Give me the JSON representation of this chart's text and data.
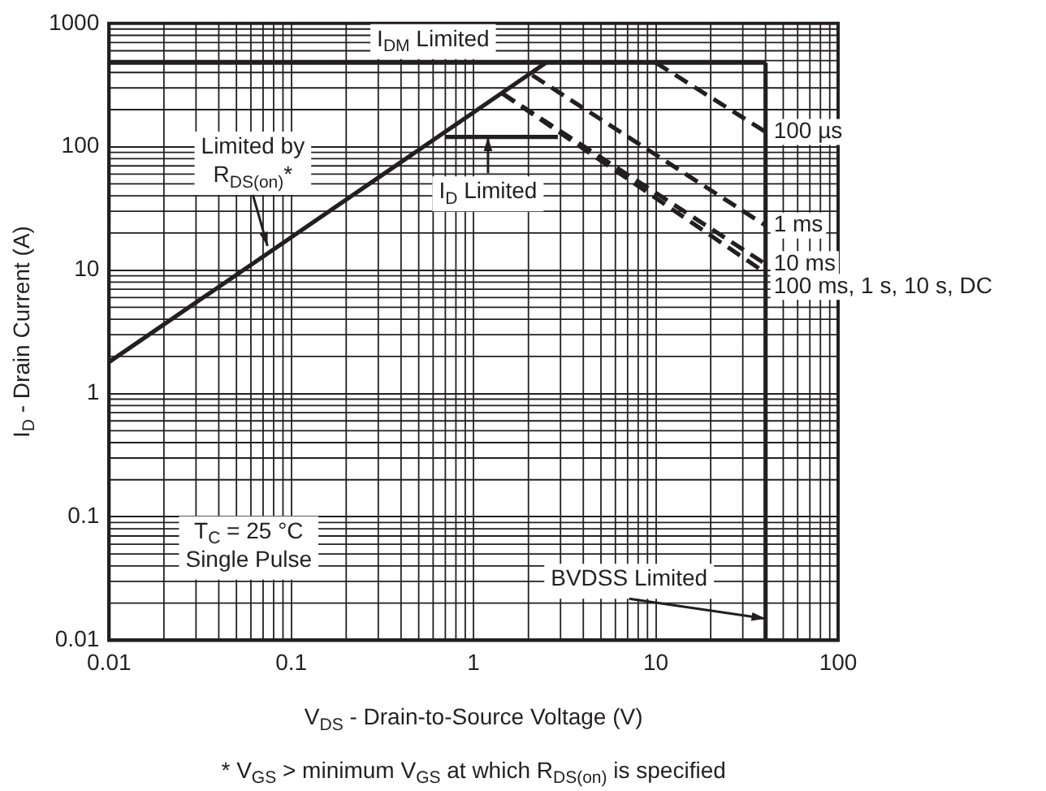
{
  "chart_data": {
    "type": "line",
    "xlabel": "V$_{DS}$ - Drain-to-Source Voltage (V)",
    "ylabel": "I$_{D}$ - Drain Current (A)",
    "log": "xy",
    "grid": true,
    "legend": false,
    "marker": "none",
    "xlim": [
      0.01,
      100
    ],
    "xticks": [
      0.01,
      0.1,
      1,
      10,
      100
    ],
    "ylim": [
      0.01,
      1000
    ],
    "yticks": [
      0.01,
      0.1,
      1,
      10,
      100,
      1000
    ],
    "series": [
      {
        "color": "#231f20",
        "line_style": "solid",
        "x": [
          0.01,
          2.5
        ],
        "values": [
          1.8,
          480
        ]
      },
      {
        "color": "#231f20",
        "line_style": "solid",
        "x": [
          0.01,
          40
        ],
        "values": [
          480,
          480
        ]
      },
      {
        "color": "#231f20",
        "line_style": "solid",
        "x": [
          0.7,
          2.9
        ],
        "values": [
          120,
          120
        ]
      },
      {
        "color": "#231f20",
        "line_style": "solid",
        "x": [
          40,
          40
        ],
        "values": [
          0.01,
          480
        ]
      },
      {
        "name": "100 µs",
        "color": "#231f20",
        "line_style": "dashed",
        "x": [
          10,
          40
        ],
        "values": [
          480,
          132
        ]
      },
      {
        "name": "1 ms",
        "color": "#231f20",
        "line_style": "dashed",
        "x": [
          2.1,
          40
        ],
        "values": [
          380,
          23
        ]
      },
      {
        "name": "10 ms",
        "color": "#231f20",
        "line_style": "dashed",
        "x": [
          1.44,
          40
        ],
        "values": [
          270,
          11.2
        ]
      },
      {
        "name": "100 ms, 1 s, 10 s, DC",
        "color": "#231f20",
        "line_style": "dashed",
        "x": [
          1.44,
          40
        ],
        "values": [
          270,
          9.5
        ]
      }
    ],
    "annotations": [
      {
        "text": "I$_{DM}$ Limited",
        "x": 0.6,
        "y": 480
      },
      {
        "text": "Limited by\nR$_{DS(on)}$*",
        "x": 0.074,
        "y": 15.7
      },
      {
        "text": "I$_{D}$ Limited",
        "x": 1.2,
        "y": 120
      },
      {
        "text": "BVDSS Limited",
        "x": 40,
        "y": 0.015
      },
      "T$_{C}$ = 25 °C\nSingle Pulse",
      "* V$_{GS}$ > minimum V$_{GS}$ at which R$_{DS(on)}$ is specified"
    ]
  }
}
